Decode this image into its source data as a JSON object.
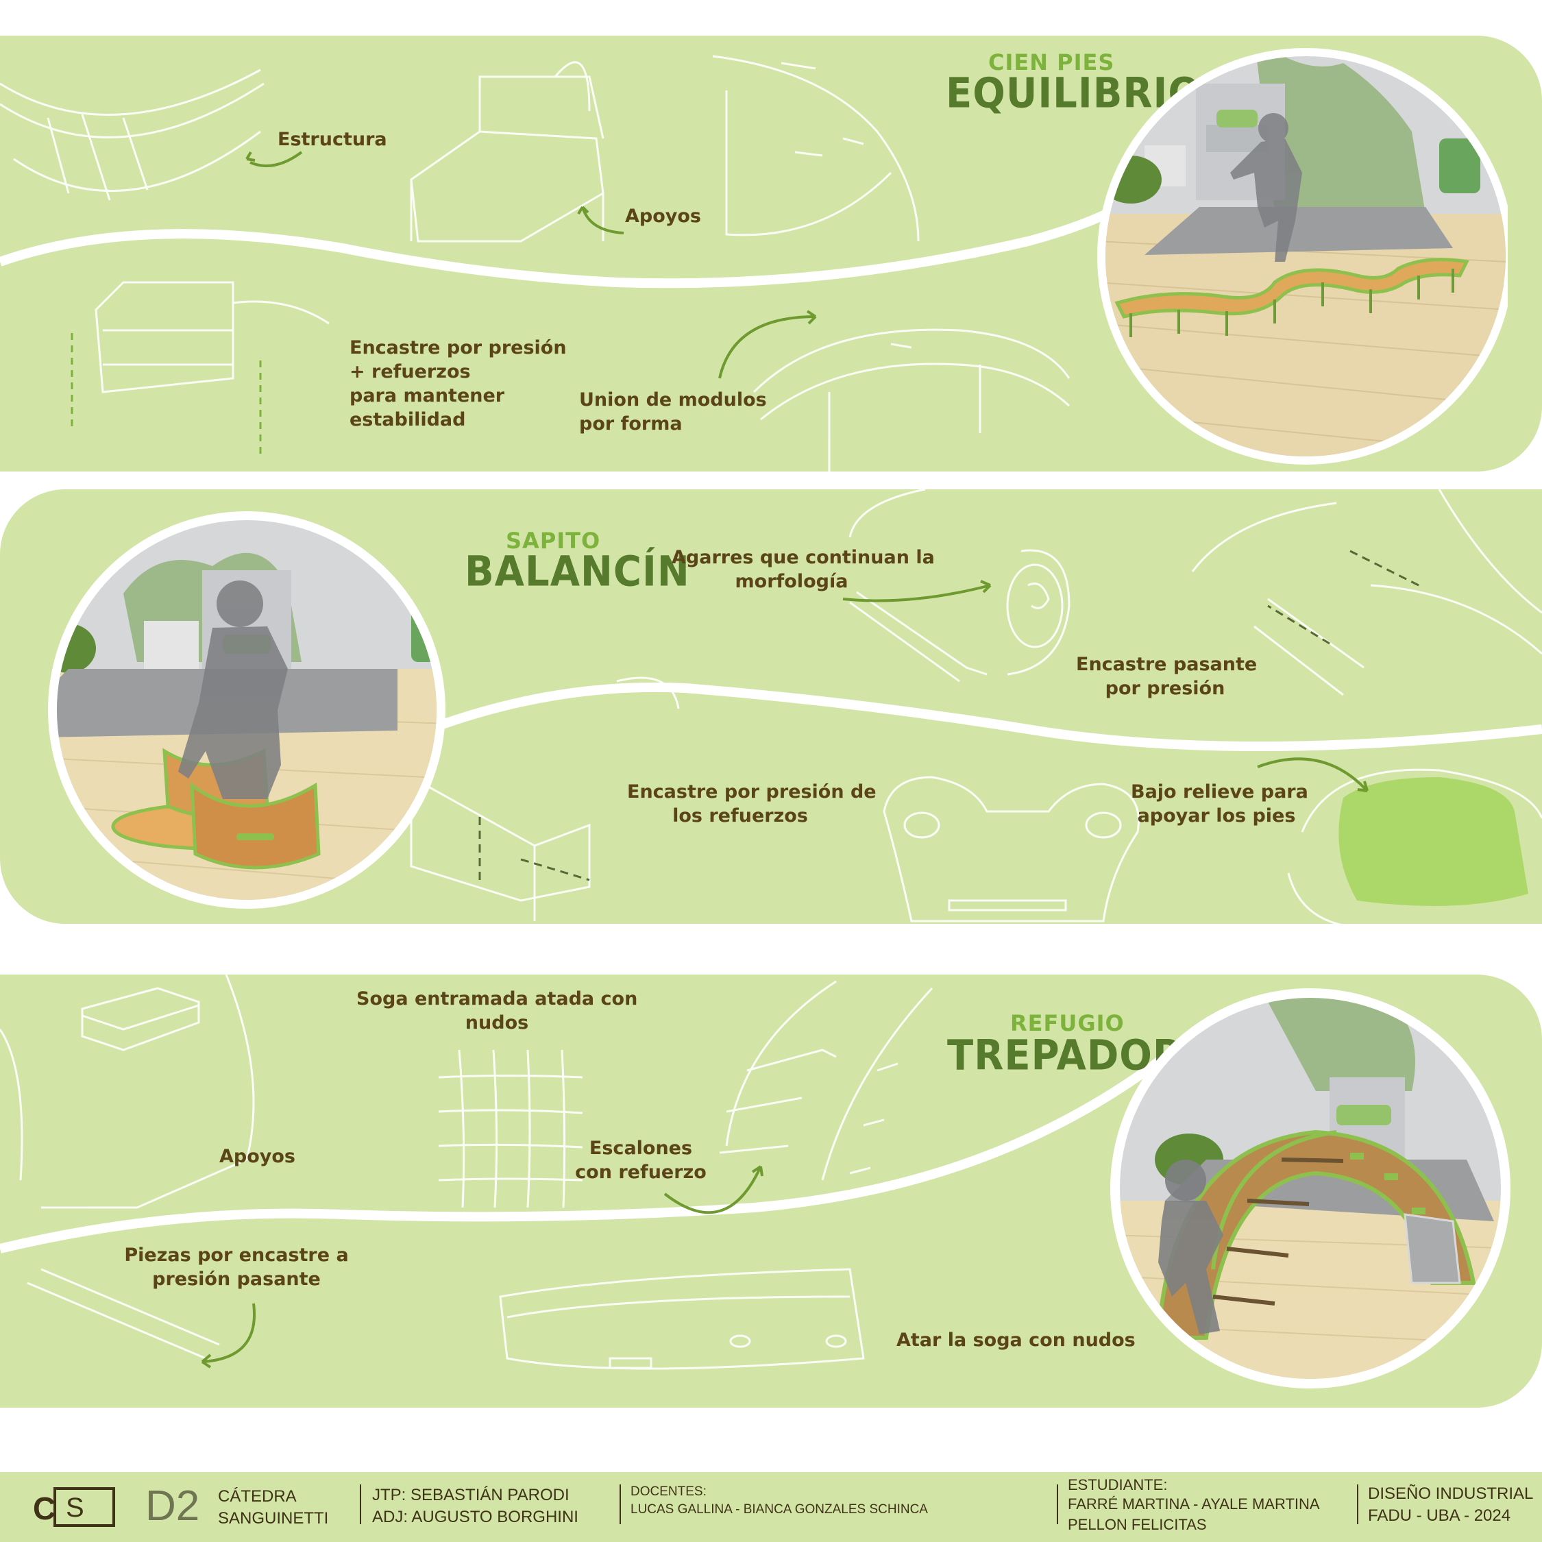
{
  "panel1": {
    "subtitle": "CIEN PIES",
    "title": "EQUILIBRIO",
    "notes": {
      "estructura": "Estructura",
      "apoyos": "Apoyos",
      "encastre_l1": "Encastre por presión",
      "encastre_l2": "+ refuerzos",
      "encastre_l3": "para mantener",
      "encastre_l4": "estabilidad",
      "union_l1": "Union de modulos",
      "union_l2": "por forma"
    }
  },
  "panel2": {
    "subtitle": "SAPITO",
    "title": "BALANCÍN",
    "notes": {
      "agarres_l1": "Agarres que continuan la",
      "agarres_l2": "morfología",
      "pasante_l1": "Encastre pasante",
      "pasante_l2": "por presión",
      "refuerzos_l1": "Encastre por presión de",
      "refuerzos_l2": "los refuerzos",
      "relieve_l1": "Bajo relieve para",
      "relieve_l2": "apoyar los pies"
    }
  },
  "panel3": {
    "subtitle": "REFUGIO",
    "title": "TREPADORA",
    "notes": {
      "soga_l1": "Soga entramada atada con",
      "soga_l2": "nudos",
      "apoyos": "Apoyos",
      "escalones_l1": "Escalones",
      "escalones_l2": "con refuerzo",
      "piezas_l1": "Piezas por encastre a",
      "piezas_l2": "presión pasante",
      "atar": "Atar la soga con nudos"
    }
  },
  "footer": {
    "logo_left": "C",
    "logo_right": "S",
    "course_code": "D2",
    "catedra_label": "CÁTEDRA",
    "catedra_name": "SANGUINETTI",
    "jtp_label": "JTP:",
    "jtp_name": "SEBASTIÁN PARODI",
    "adj_label": "ADJ:",
    "adj_name": "AUGUSTO BORGHINI",
    "docentes_label": "DOCENTES:",
    "docentes_names": "LUCAS GALLINA - BIANCA GONZALES SCHINCA",
    "estudiante_label": "ESTUDIANTE:",
    "estudiante_l1": "FARRÉ MARTINA - AYALE MARTINA",
    "estudiante_l2": "PELLON FELICITAS",
    "carrera": "DISEÑO INDUSTRIAL",
    "institucion": "FADU - UBA - 2024"
  },
  "colors": {
    "panel_bg": "#d2e5a6",
    "title_green": "#577b2c",
    "subtitle_green": "#7db33c",
    "note_brown": "#5b4418",
    "arrow_green": "#6e9a30"
  }
}
